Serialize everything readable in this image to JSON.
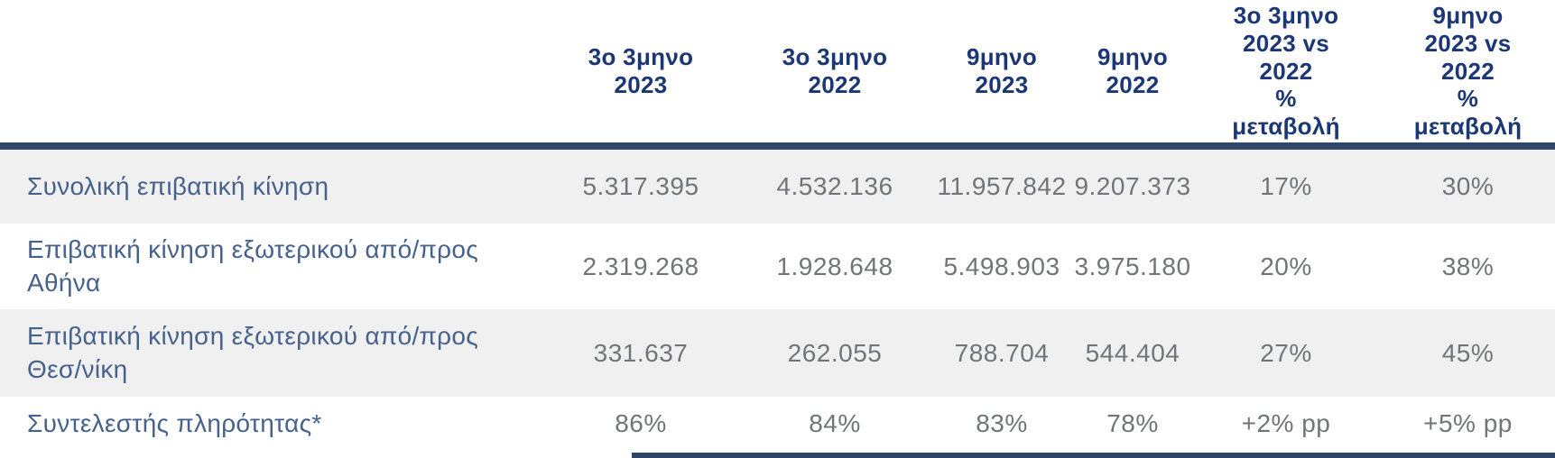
{
  "colors": {
    "header_text": "#1c3775",
    "row_label_text": "#46618c",
    "value_text": "#717478",
    "header_rule": "#2f4569",
    "row_stripe_bg": "#f0f0f1",
    "background": "#ffffff"
  },
  "chart_data": {
    "type": "table",
    "columns": [
      "3ο 3μηνο 2023",
      "3ο 3μηνο 2022",
      "9μηνο 2023",
      "9μηνο 2022",
      "3ο 3μηνο 2023 vs 2022 % μεταβολή",
      "9μηνο 2023 vs 2022 % μεταβολή"
    ],
    "rows": [
      {
        "label": "Συνολική επιβατική κίνηση",
        "values": [
          "5.317.395",
          "4.532.136",
          "11.957.842",
          "9.207.373",
          "17%",
          "30%"
        ]
      },
      {
        "label": "Επιβατική κίνηση εξωτερικού από/προς Αθήνα",
        "values": [
          "2.319.268",
          "1.928.648",
          "5.498.903",
          "3.975.180",
          "20%",
          "38%"
        ]
      },
      {
        "label": "Επιβατική κίνηση εξωτερικού από/προς Θεσ/νίκη",
        "values": [
          "331.637",
          "262.055",
          "788.704",
          "544.404",
          "27%",
          "45%"
        ]
      },
      {
        "label": "Συντελεστής πληρότητας*",
        "values": [
          "86%",
          "84%",
          "83%",
          "78%",
          "+2% pp",
          "+5% pp"
        ]
      }
    ]
  },
  "table": {
    "headers": [
      {
        "label": "3ο 3μηνο\n2023"
      },
      {
        "label": "3ο 3μηνο\n2022"
      },
      {
        "label": "9μηνο\n2023"
      },
      {
        "label": "9μηνο\n2022"
      },
      {
        "label": "3ο 3μηνο\n2023 vs\n2022\n%\nμεταβολή"
      },
      {
        "label": "9μηνο\n2023 vs\n2022\n%\nμεταβολή"
      }
    ],
    "rows": [
      {
        "label": "Συνολική επιβατική κίνηση",
        "values": [
          "5.317.395",
          "4.532.136",
          "11.957.842",
          "9.207.373",
          "17%",
          "30%"
        ]
      },
      {
        "label": "Επιβατική κίνηση εξωτερικού από/προς Αθήνα",
        "values": [
          "2.319.268",
          "1.928.648",
          "5.498.903",
          "3.975.180",
          "20%",
          "38%"
        ]
      },
      {
        "label": "Επιβατική κίνηση εξωτερικού από/προς Θεσ/νίκη",
        "values": [
          "331.637",
          "262.055",
          "788.704",
          "544.404",
          "27%",
          "45%"
        ]
      },
      {
        "label": "Συντελεστής πληρότητας*",
        "values": [
          "86%",
          "84%",
          "83%",
          "78%",
          "+2% pp",
          "+5% pp"
        ]
      }
    ]
  }
}
